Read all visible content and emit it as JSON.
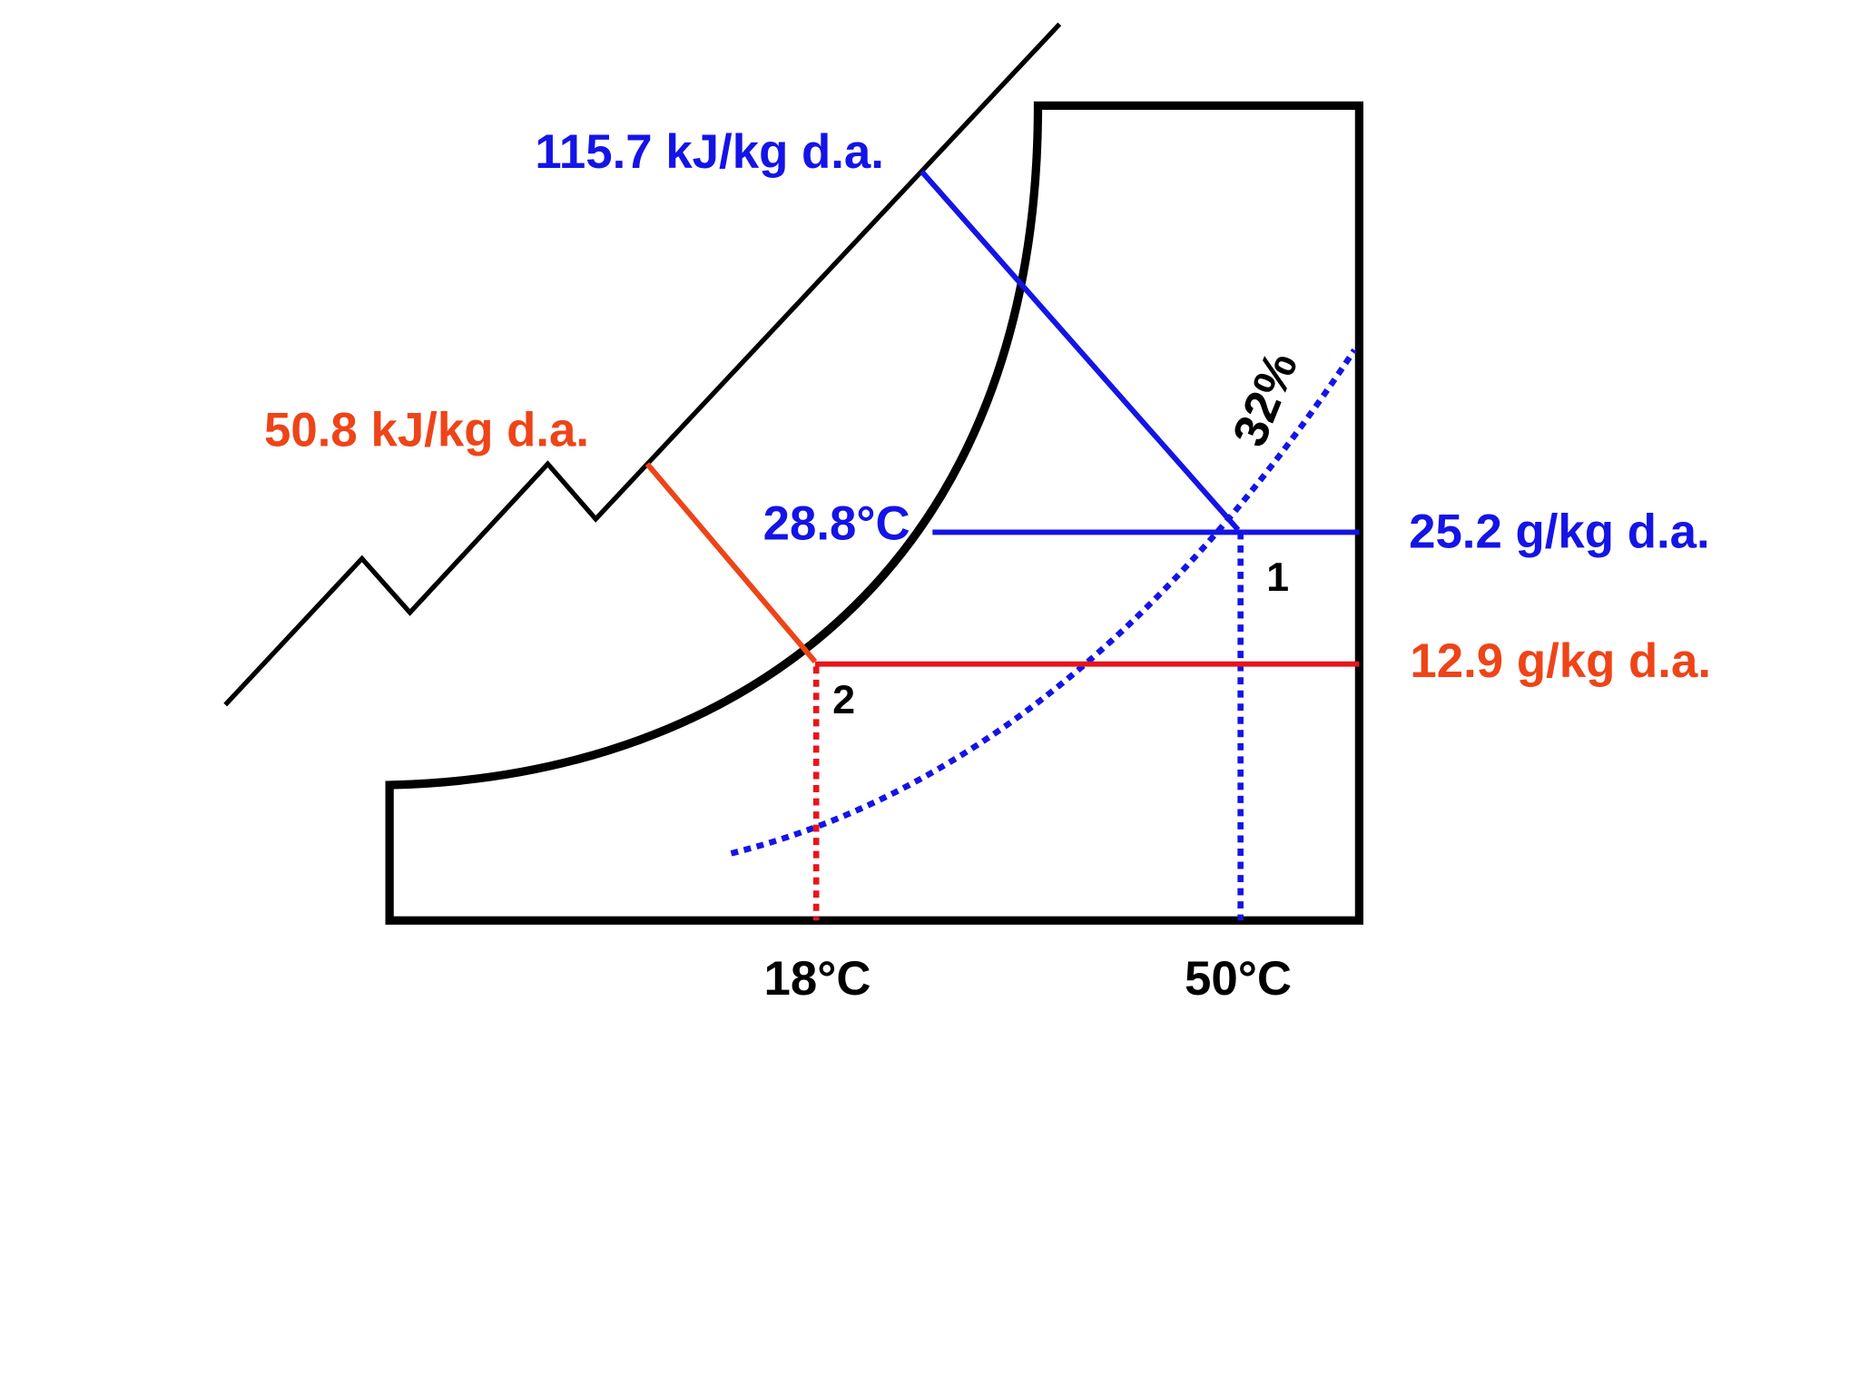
{
  "labels": {
    "enthalpy_high": "115.7 kJ/kg d.a.",
    "enthalpy_low": "50.8 kJ/kg d.a.",
    "dew_point": "28.8°C",
    "humidity_high": "25.2 g/kg d.a.",
    "humidity_low": "12.9 g/kg d.a.",
    "relative_humidity": "32%",
    "state_1": "1",
    "state_2": "2",
    "temp_low": "18°C",
    "temp_high": "50°C"
  }
}
